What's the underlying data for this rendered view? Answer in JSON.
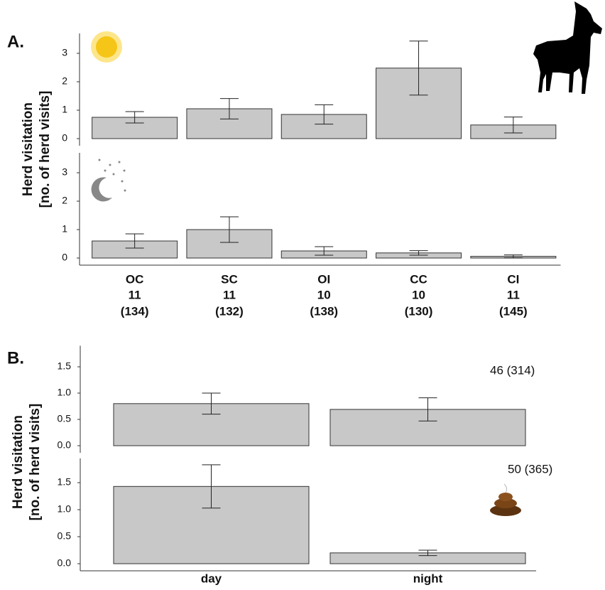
{
  "chart_data": [
    {
      "type": "bar",
      "panel_label": "A.",
      "ylabel": [
        "Herd visitation",
        "[no. of herd visits]"
      ],
      "values": [
        0.75,
        1.05,
        0.85,
        2.48,
        0.48
      ],
      "errors": [
        0.2,
        0.36,
        0.34,
        0.95,
        0.28
      ],
      "color": "#c8c8c8",
      "ylim": [
        0,
        3.7
      ],
      "yticks": [
        0,
        1,
        2,
        3
      ]
    },
    {
      "type": "bar",
      "categories": [
        "OC",
        "SC",
        "OI",
        "CC",
        "CI"
      ],
      "n_labels": [
        "11",
        "11",
        "10",
        "10",
        "11"
      ],
      "obs_labels": [
        "(134)",
        "(132)",
        "(138)",
        "(130)",
        "(145)"
      ],
      "values": [
        0.6,
        1.0,
        0.25,
        0.18,
        0.06
      ],
      "errors": [
        0.25,
        0.45,
        0.15,
        0.08,
        0.05
      ],
      "color": "#c8c8c8",
      "ylim": [
        0,
        3.7
      ],
      "yticks": [
        0,
        1,
        2,
        3
      ]
    },
    {
      "type": "bar",
      "panel_label": "B.",
      "ylabel": [
        "Herd visitation",
        "[no. of herd visits]"
      ],
      "annotation": "46 (314)",
      "values": [
        0.8,
        0.69
      ],
      "errors": [
        0.2,
        0.22
      ],
      "color": "#c8c8c8",
      "ylim": [
        0,
        1.9
      ],
      "yticks": [
        {
          "value": 0,
          "label": "0.0"
        },
        0.5,
        {
          "value": 1,
          "label": "1.0"
        },
        1.5
      ]
    },
    {
      "type": "bar",
      "annotation": "50 (365)",
      "categories": [
        "day",
        "night"
      ],
      "values": [
        1.43,
        0.2
      ],
      "errors": [
        0.4,
        0.05
      ],
      "color": "#c8c8c8",
      "ylim": [
        0,
        1.95
      ],
      "yticks": [
        {
          "value": 0,
          "label": "0.0"
        },
        0.5,
        {
          "value": 1,
          "label": "1.0"
        },
        1.5
      ]
    }
  ]
}
